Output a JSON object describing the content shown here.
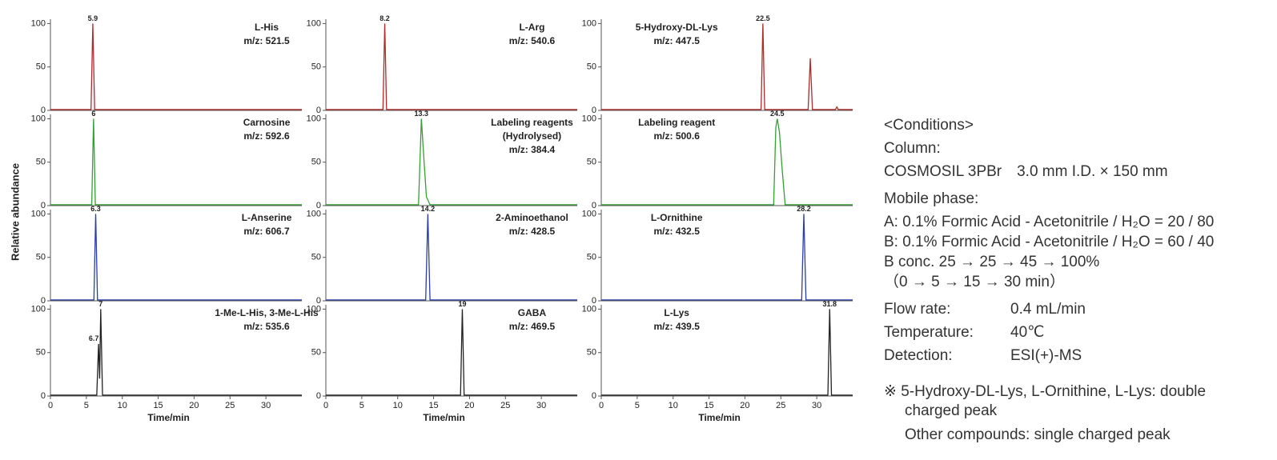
{
  "y_axis_label": "Relative abundance",
  "chart_data": [
    {
      "type": "line",
      "title": [
        "L-His"
      ],
      "subtitle": "m/z: 521.5",
      "color": "#b02a2a",
      "xlim": [
        0,
        35
      ],
      "ylim": [
        0,
        105
      ],
      "yticks": [
        0,
        50,
        100
      ],
      "x": [
        0,
        5.65,
        5.9,
        6.15,
        35
      ],
      "values": [
        1,
        1,
        100,
        1,
        1
      ],
      "peak_labels": [
        5.9
      ]
    },
    {
      "type": "line",
      "title": [
        "Carnosine"
      ],
      "subtitle": "m/z: 592.6",
      "color": "#34a034",
      "xlim": [
        0,
        35
      ],
      "ylim": [
        0,
        105
      ],
      "yticks": [
        0,
        50,
        100
      ],
      "x": [
        0,
        5.75,
        6.0,
        6.25,
        35
      ],
      "values": [
        1,
        1,
        100,
        1,
        1
      ],
      "peak_labels": [
        6.0
      ]
    },
    {
      "type": "line",
      "title": [
        "L-Anserine"
      ],
      "subtitle": "m/z: 606.7",
      "color": "#2a3ea8",
      "xlim": [
        0,
        35
      ],
      "ylim": [
        0,
        105
      ],
      "yticks": [
        0,
        50,
        100
      ],
      "x": [
        0,
        6.05,
        6.3,
        6.55,
        35
      ],
      "values": [
        1,
        1,
        100,
        1,
        1
      ],
      "peak_labels": [
        6.3
      ]
    },
    {
      "type": "line",
      "title": [
        "1-Me-L-His, 3-Me-L-His"
      ],
      "subtitle": "m/z: 535.6",
      "color": "#222222",
      "xlim": [
        0,
        35
      ],
      "ylim": [
        0,
        105
      ],
      "yticks": [
        0,
        50,
        100
      ],
      "xticks": [
        0,
        5,
        10,
        15,
        20,
        25,
        30
      ],
      "xlabel": "Time/min",
      "x": [
        0,
        6.45,
        6.7,
        6.85,
        7.0,
        7.25,
        35
      ],
      "values": [
        1,
        1,
        60,
        20,
        100,
        1,
        1
      ],
      "peak_labels": [
        6.7,
        7.0
      ]
    },
    {
      "type": "line",
      "title": [
        "L-Arg"
      ],
      "subtitle": "m/z: 540.6",
      "color": "#b02a2a",
      "xlim": [
        0,
        35
      ],
      "ylim": [
        0,
        105
      ],
      "yticks": [
        0,
        50,
        100
      ],
      "x": [
        0,
        7.95,
        8.2,
        8.45,
        35
      ],
      "values": [
        1,
        1,
        100,
        1,
        1
      ],
      "peak_labels": [
        8.2
      ]
    },
    {
      "type": "line",
      "title": [
        "Labeling reagents",
        "(Hydrolysed)"
      ],
      "subtitle": "m/z: 384.4",
      "color": "#34a034",
      "xlim": [
        0,
        35
      ],
      "ylim": [
        0,
        105
      ],
      "yticks": [
        0,
        50,
        100
      ],
      "x": [
        0,
        12.9,
        13.3,
        13.6,
        14.0,
        14.5,
        35
      ],
      "values": [
        1,
        1,
        100,
        60,
        10,
        1,
        1
      ],
      "peak_labels": [
        13.3
      ]
    },
    {
      "type": "line",
      "title": [
        "2-Aminoethanol"
      ],
      "subtitle": "m/z: 428.5",
      "color": "#2a3ea8",
      "xlim": [
        0,
        35
      ],
      "ylim": [
        0,
        105
      ],
      "yticks": [
        0,
        50,
        100
      ],
      "x": [
        0,
        13.9,
        14.2,
        14.5,
        35
      ],
      "values": [
        1,
        1,
        100,
        1,
        1
      ],
      "peak_labels": [
        14.2
      ]
    },
    {
      "type": "line",
      "title": [
        "GABA"
      ],
      "subtitle": "m/z: 469.5",
      "color": "#222222",
      "xlim": [
        0,
        35
      ],
      "ylim": [
        0,
        105
      ],
      "yticks": [
        0,
        50,
        100
      ],
      "xticks": [
        0,
        5,
        10,
        15,
        20,
        25,
        30
      ],
      "xlabel": "Time/min",
      "x": [
        0,
        18.75,
        19.0,
        19.25,
        35
      ],
      "values": [
        1,
        1,
        100,
        1,
        1
      ],
      "peak_labels": [
        19.0
      ]
    },
    {
      "type": "line",
      "title": [
        "5-Hydroxy-DL-Lys"
      ],
      "subtitle": "m/z: 447.5",
      "color": "#b02a2a",
      "xlim": [
        0,
        35
      ],
      "ylim": [
        0,
        105
      ],
      "yticks": [
        0,
        50,
        100
      ],
      "x": [
        0,
        22.25,
        22.5,
        22.75,
        28.8,
        29.1,
        29.4,
        32.6,
        32.8,
        33.0,
        35
      ],
      "values": [
        1,
        1,
        100,
        1,
        1,
        60,
        1,
        1,
        4,
        1,
        1
      ],
      "peak_labels": [
        22.5
      ]
    },
    {
      "type": "line",
      "title": [
        "Labeling reagent"
      ],
      "subtitle": "m/z: 500.6",
      "color": "#34a034",
      "xlim": [
        0,
        35
      ],
      "ylim": [
        0,
        105
      ],
      "yticks": [
        0,
        50,
        100
      ],
      "x": [
        0,
        24.0,
        24.3,
        24.5,
        24.8,
        25.2,
        25.6,
        35
      ],
      "values": [
        1,
        1,
        90,
        100,
        85,
        40,
        1,
        1
      ],
      "peak_labels": [
        24.5
      ]
    },
    {
      "type": "line",
      "title": [
        "L-Ornithine"
      ],
      "subtitle": "m/z: 432.5",
      "color": "#2a3ea8",
      "xlim": [
        0,
        35
      ],
      "ylim": [
        0,
        105
      ],
      "yticks": [
        0,
        50,
        100
      ],
      "x": [
        0,
        27.9,
        28.2,
        28.5,
        35
      ],
      "values": [
        1,
        1,
        100,
        1,
        1
      ],
      "peak_labels": [
        28.2
      ]
    },
    {
      "type": "line",
      "title": [
        "L-Lys"
      ],
      "subtitle": "m/z: 439.5",
      "color": "#222222",
      "xlim": [
        0,
        35
      ],
      "ylim": [
        0,
        105
      ],
      "yticks": [
        0,
        50,
        100
      ],
      "xticks": [
        0,
        5,
        10,
        15,
        20,
        25,
        30
      ],
      "xlabel": "Time/min",
      "x": [
        0,
        31.55,
        31.8,
        32.05,
        35
      ],
      "values": [
        1,
        1,
        100,
        1,
        1
      ],
      "peak_labels": [
        31.8
      ]
    }
  ],
  "conditions": {
    "heading": "<Conditions>",
    "column_label": "Column:",
    "column": "COSMOSIL 3PBr　3.0 mm I.D. × 150 mm",
    "mobile_phase_label": "Mobile phase:",
    "a": "A: 0.1% Formic Acid - Acetonitrile / H₂O = 20 / 80",
    "b": "B: 0.1% Formic Acid - Acetonitrile / H₂O = 60 / 40",
    "gradient": "B conc. 25 → 25 → 45 → 100%",
    "gradient_time": "（0 → 5 → 15 → 30 min）",
    "rows": [
      [
        "Flow rate:",
        "0.4 mL/min"
      ],
      [
        "Temperature:",
        "40℃"
      ],
      [
        "Detection:",
        "ESI(+)-MS"
      ]
    ],
    "note": [
      "※ 5-Hydroxy-DL-Lys, L-Ornithine, L-Lys: double",
      "charged peak",
      "Other compounds: single charged peak"
    ]
  }
}
